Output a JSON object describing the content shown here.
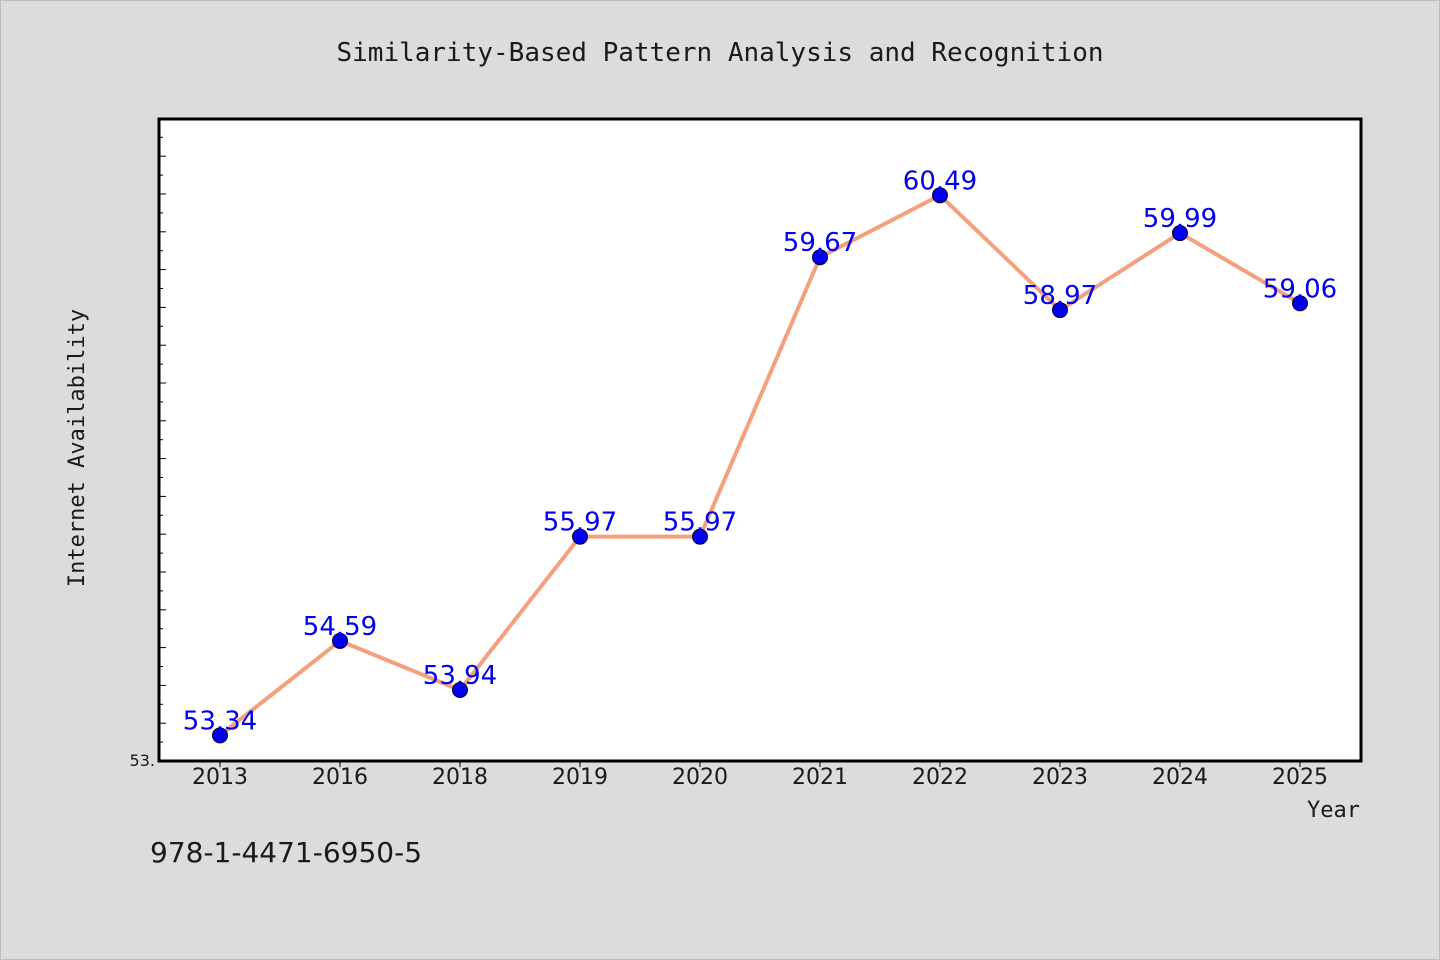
{
  "chart_data": {
    "type": "line",
    "title": "Similarity-Based Pattern Analysis and Recognition",
    "xlabel": "Year",
    "ylabel": "Internet Availability",
    "categories": [
      "2013",
      "2016",
      "2018",
      "2019",
      "2020",
      "2021",
      "2022",
      "2023",
      "2024",
      "2025"
    ],
    "series": [
      {
        "values": [
          53.34,
          54.59,
          53.94,
          55.97,
          55.97,
          59.67,
          60.49,
          58.97,
          59.99,
          59.06
        ],
        "labels": [
          "53.34",
          "54.59",
          "53.94",
          "55.97",
          "55.97",
          "59.67",
          "60.49",
          "58.97",
          "59.99",
          "59.06"
        ]
      }
    ],
    "ylim": [
      53.0,
      61.5
    ],
    "ytick_label": "53.",
    "grid": false,
    "colors": {
      "line": "#f4a07c",
      "marker": "#0000ee",
      "data_label": "#0000ee"
    }
  },
  "footer": {
    "isbn": "978-1-4471-6950-5"
  }
}
